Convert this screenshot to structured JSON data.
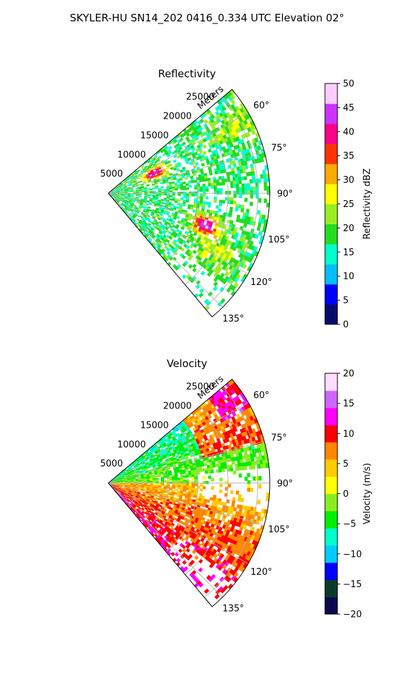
{
  "figure": {
    "suptitle": "SKYLER-HU  SN14_202  0416_0.334 UTC Elevation 02°"
  },
  "chart_data": [
    {
      "type": "heatmap",
      "title": "Reflectivity",
      "range_label": "Meters",
      "range_ticks": [
        5000,
        10000,
        15000,
        20000,
        25000
      ],
      "range_max": 27000,
      "azimuth_ticks": [
        "60°",
        "75°",
        "90°",
        "105°",
        "120°",
        "135°"
      ],
      "azimuth_range": [
        50,
        140
      ],
      "colorbar": {
        "label": "Reflectivity dBZ",
        "min": 0,
        "max": 50,
        "ticks": [
          "0",
          "5",
          "10",
          "15",
          "20",
          "25",
          "30",
          "35",
          "40",
          "45",
          "50"
        ],
        "colors": [
          "#0a0a6e",
          "#0000ff",
          "#00bfff",
          "#00ffcc",
          "#22dd22",
          "#99ee22",
          "#ffff00",
          "#ffaa00",
          "#ff3300",
          "#ff0088",
          "#cc33ff",
          "#ffccff"
        ]
      }
    },
    {
      "type": "heatmap",
      "title": "Velocity",
      "range_label": "Meters",
      "range_ticks": [
        5000,
        10000,
        15000,
        20000,
        25000
      ],
      "range_max": 27000,
      "azimuth_ticks": [
        "60°",
        "75°",
        "90°",
        "105°",
        "120°",
        "135°"
      ],
      "azimuth_range": [
        50,
        140
      ],
      "colorbar": {
        "label": "Velocity (m/s)",
        "min": -20,
        "max": 20,
        "ticks": [
          "−20",
          "−15",
          "−10",
          "−5",
          "0",
          "5",
          "10",
          "15",
          "20"
        ],
        "colors": [
          "#0a0a4e",
          "#0a3a2a",
          "#0000ff",
          "#00ccff",
          "#00ffcc",
          "#00ee00",
          "#88ee22",
          "#ffff00",
          "#ffcc00",
          "#ff8800",
          "#ff0000",
          "#ff00ff",
          "#cc66ff",
          "#ffddff"
        ]
      }
    }
  ]
}
